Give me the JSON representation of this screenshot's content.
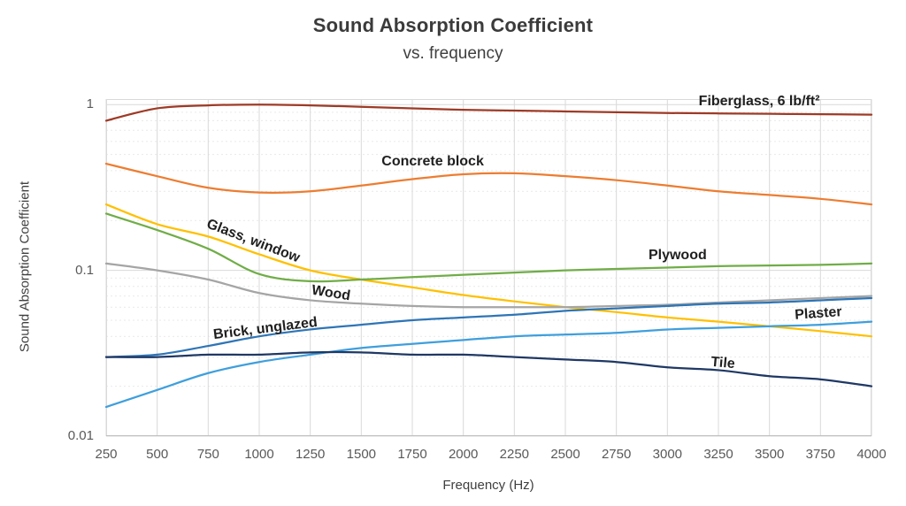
{
  "header": {
    "title": "Sound Absorption Coefficient",
    "subtitle": "vs. frequency"
  },
  "chart_data": {
    "type": "line",
    "title": "Sound Absorption Coefficient",
    "subtitle": "vs. frequency",
    "xlabel": "Frequency (Hz)",
    "ylabel": "Sound Absorption Coefficient",
    "x_scale": "linear",
    "y_scale": "log",
    "x_range": [
      250,
      4000
    ],
    "y_range": [
      0.01,
      1.08
    ],
    "x_ticks": [
      250,
      500,
      750,
      1000,
      1250,
      1500,
      1750,
      2000,
      2250,
      2500,
      2750,
      3000,
      3250,
      3500,
      3750,
      4000
    ],
    "y_ticks": [
      {
        "value": 1,
        "label": "1"
      },
      {
        "value": 0.1,
        "label": "0.1"
      },
      {
        "value": 0.01,
        "label": "0.01"
      }
    ],
    "y_minor_gridlines": [
      0.02,
      0.03,
      0.04,
      0.05,
      0.06,
      0.07,
      0.08,
      0.09,
      0.2,
      0.3,
      0.4,
      0.5,
      0.6,
      0.7,
      0.8,
      0.9
    ],
    "grid": "major-and-minor",
    "legend": "inline-labels",
    "x": [
      250,
      500,
      750,
      1000,
      1250,
      1500,
      1750,
      2000,
      2250,
      2500,
      2750,
      3000,
      3250,
      3500,
      3750,
      4000
    ],
    "series": [
      {
        "name": "Fiberglass, 6 lb/ft²",
        "color": "#9E3A26",
        "values": [
          0.8,
          0.95,
          0.99,
          1.0,
          0.99,
          0.97,
          0.95,
          0.93,
          0.92,
          0.91,
          0.9,
          0.89,
          0.885,
          0.88,
          0.875,
          0.87
        ],
        "label": {
          "x": 3450,
          "y": 1.04,
          "rotate": 0
        }
      },
      {
        "name": "Concrete block",
        "color": "#ED7D31",
        "values": [
          0.44,
          0.37,
          0.315,
          0.295,
          0.3,
          0.325,
          0.355,
          0.38,
          0.385,
          0.37,
          0.35,
          0.325,
          0.3,
          0.285,
          0.27,
          0.25
        ],
        "label": {
          "x": 1850,
          "y": 0.45,
          "rotate": 0
        }
      },
      {
        "name": "Glass, window",
        "color": "#FFC000",
        "values": [
          0.25,
          0.19,
          0.16,
          0.125,
          0.1,
          0.088,
          0.079,
          0.071,
          0.065,
          0.06,
          0.056,
          0.052,
          0.049,
          0.046,
          0.043,
          0.04
        ],
        "label": {
          "x": 970,
          "y": 0.15,
          "rotate": 21
        }
      },
      {
        "name": "Plywood",
        "color": "#70AD47",
        "values": [
          0.22,
          0.175,
          0.135,
          0.095,
          0.086,
          0.088,
          0.091,
          0.094,
          0.097,
          0.1,
          0.102,
          0.104,
          0.106,
          0.107,
          0.108,
          0.11
        ],
        "label": {
          "x": 3050,
          "y": 0.122,
          "rotate": 0
        }
      },
      {
        "name": "Wood",
        "color": "#A5A5A5",
        "values": [
          0.11,
          0.1,
          0.088,
          0.073,
          0.066,
          0.063,
          0.061,
          0.06,
          0.06,
          0.06,
          0.061,
          0.062,
          0.064,
          0.066,
          0.068,
          0.07
        ],
        "label": {
          "x": 1350,
          "y": 0.072,
          "rotate": 9
        }
      },
      {
        "name": "Brick, unglazed",
        "color": "#2E75B6",
        "values": [
          0.03,
          0.031,
          0.035,
          0.04,
          0.044,
          0.047,
          0.05,
          0.052,
          0.054,
          0.057,
          0.059,
          0.061,
          0.063,
          0.064,
          0.066,
          0.068
        ],
        "label": {
          "x": 1030,
          "y": 0.0445,
          "rotate": -7
        }
      },
      {
        "name": "Plaster",
        "color": "#3F9FDC",
        "values": [
          0.015,
          0.019,
          0.024,
          0.028,
          0.031,
          0.034,
          0.036,
          0.038,
          0.04,
          0.041,
          0.042,
          0.044,
          0.045,
          0.046,
          0.047,
          0.049
        ],
        "label": {
          "x": 3740,
          "y": 0.0545,
          "rotate": -4
        }
      },
      {
        "name": "Tile",
        "color": "#1F3864",
        "values": [
          0.03,
          0.03,
          0.031,
          0.031,
          0.032,
          0.032,
          0.031,
          0.031,
          0.03,
          0.029,
          0.028,
          0.026,
          0.025,
          0.023,
          0.022,
          0.02
        ],
        "label": {
          "x": 3270,
          "y": 0.0275,
          "rotate": 5
        }
      }
    ],
    "style": {
      "grid_major": "#D9D9D9",
      "grid_minor": "#E9E9E9",
      "plot_border": "#D9D9D9",
      "axis_line": "#BFBFBF",
      "tick_text": "#595959",
      "title_text": "#3B3B3B"
    }
  }
}
